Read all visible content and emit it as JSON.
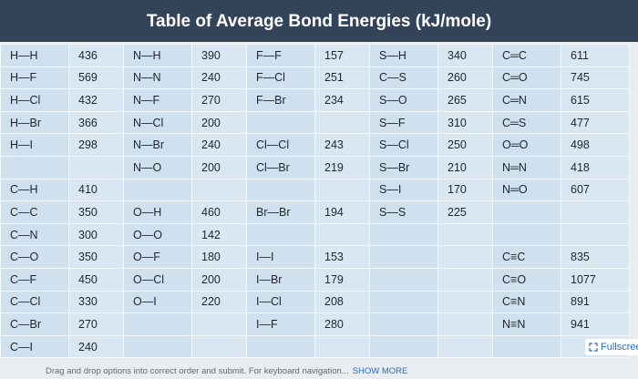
{
  "header": {
    "title": "Table of Average Bond Energies (kJ/mole)"
  },
  "table": {
    "rows": [
      [
        "H—H",
        436,
        "N—H",
        390,
        "F—F",
        157,
        "S—H",
        340,
        "C═C",
        611
      ],
      [
        "H—F",
        569,
        "N—N",
        240,
        "F—Cl",
        251,
        "C—S",
        260,
        "C═O",
        745
      ],
      [
        "H—Cl",
        432,
        "N—F",
        270,
        "F—Br",
        234,
        "S—O",
        265,
        "C═N",
        615
      ],
      [
        "H—Br",
        366,
        "N—Cl",
        200,
        null,
        null,
        "S—F",
        310,
        "C═S",
        477
      ],
      [
        "H—I",
        298,
        "N—Br",
        240,
        "Cl—Cl",
        243,
        "S—Cl",
        250,
        "O═O",
        498
      ],
      [
        null,
        null,
        "N—O",
        200,
        "Cl—Br",
        219,
        "S—Br",
        210,
        "N═N",
        418
      ],
      [
        "C—H",
        410,
        null,
        null,
        null,
        null,
        "S—I",
        170,
        "N═O",
        607
      ],
      [
        "C—C",
        350,
        "O—H",
        460,
        "Br—Br",
        194,
        "S—S",
        225,
        null,
        null
      ],
      [
        "C—N",
        300,
        "O—O",
        142,
        null,
        null,
        null,
        null,
        null,
        null
      ],
      [
        "C—O",
        350,
        "O—F",
        180,
        "I—I",
        153,
        null,
        null,
        "C≡C",
        835
      ],
      [
        "C—F",
        450,
        "O—Cl",
        200,
        "I—Br",
        179,
        null,
        null,
        "C≡O",
        1077
      ],
      [
        "C—Cl",
        330,
        "O—I",
        220,
        "I—Cl",
        208,
        null,
        null,
        "C≡N",
        891
      ],
      [
        "C—Br",
        270,
        null,
        null,
        "I—F",
        280,
        null,
        null,
        "N≡N",
        941
      ],
      [
        "C—I",
        240,
        null,
        null,
        null,
        null,
        null,
        null,
        null,
        null
      ]
    ]
  },
  "controls": {
    "fullscreen": "Fullscreen"
  },
  "footer": {
    "instructions": "Drag and drop options into correct order and submit. For keyboard navigation...",
    "show_more": "SHOW MORE"
  }
}
